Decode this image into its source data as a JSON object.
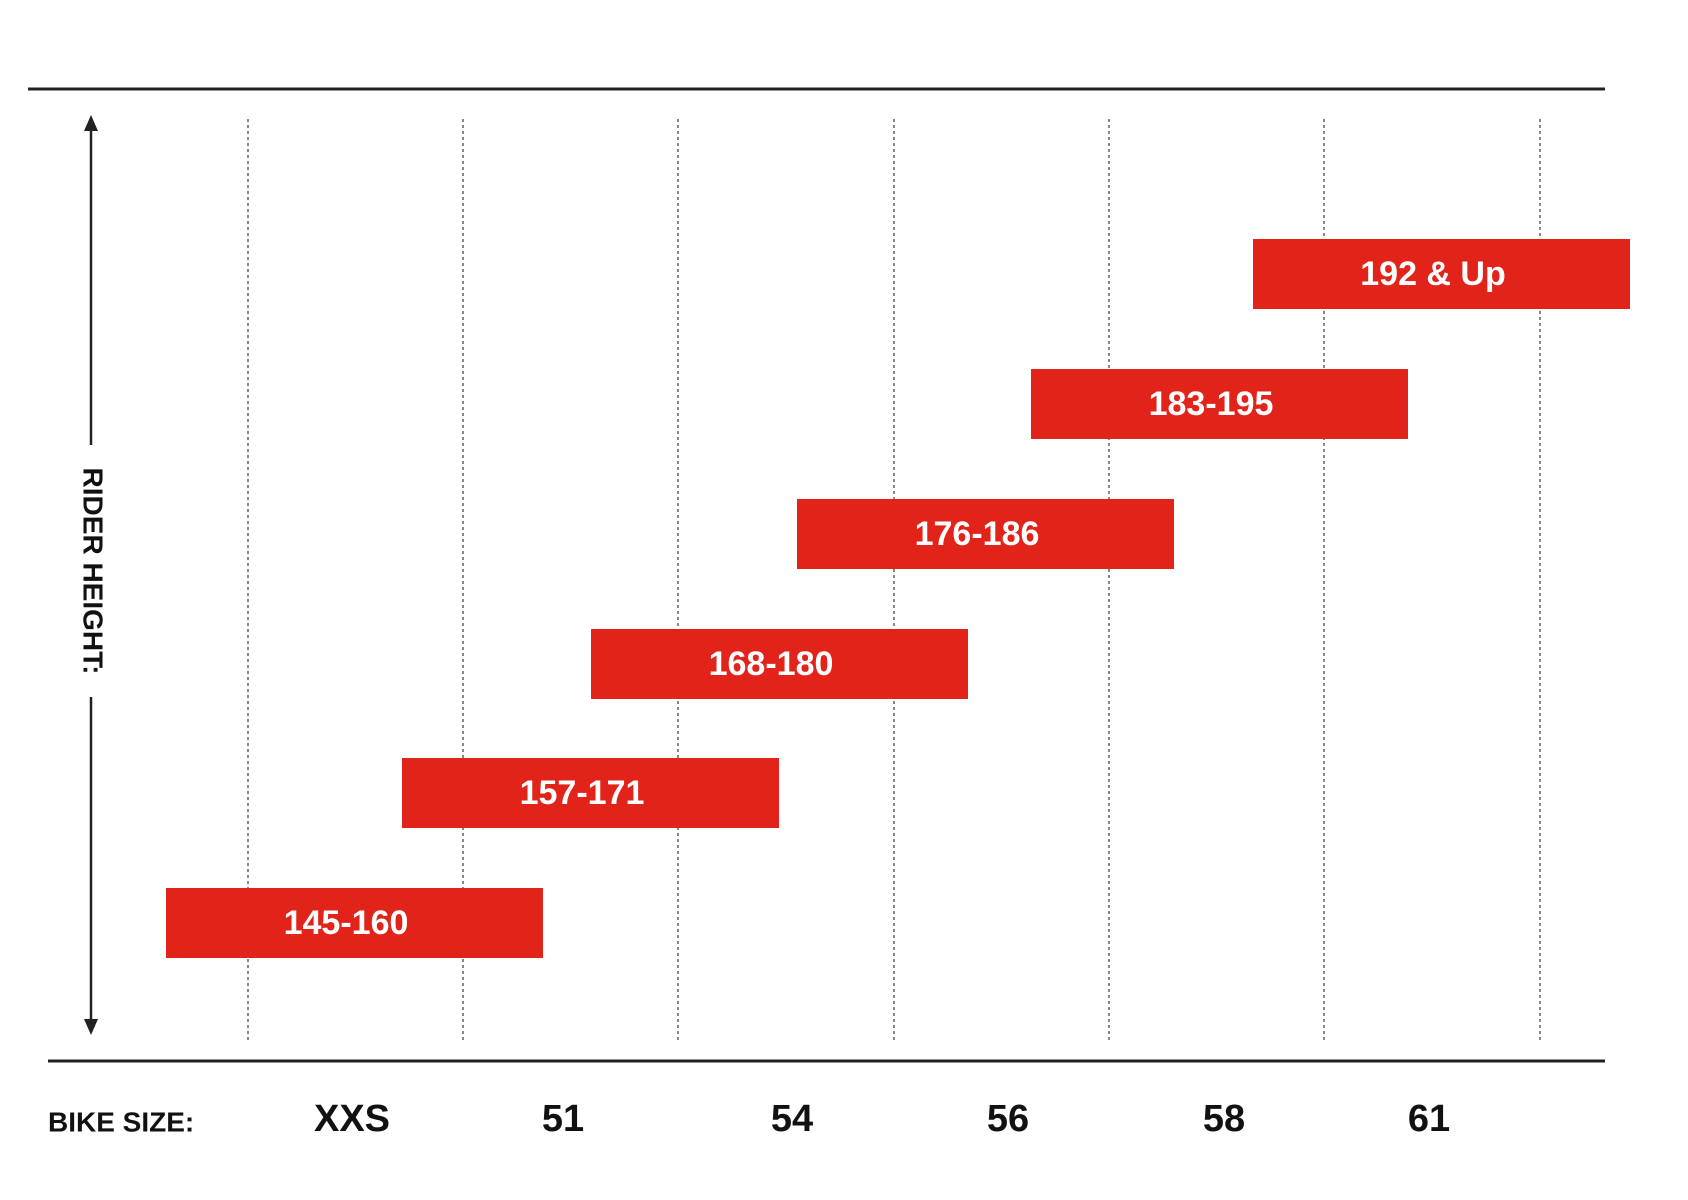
{
  "y_axis_label": "RIDER HEIGHT:",
  "x_axis_label": "BIKE SIZE:",
  "sizes": [
    "XXS",
    "51",
    "54",
    "56",
    "58",
    "61"
  ],
  "heights": [
    "145-160",
    "157-171",
    "168-180",
    "176-186",
    "183-195",
    "192 & Up"
  ]
}
